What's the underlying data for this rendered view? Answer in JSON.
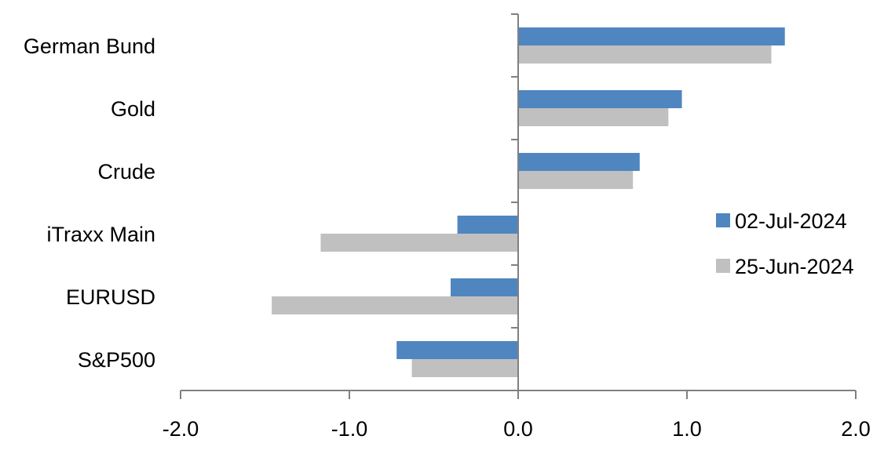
{
  "chart_data": {
    "type": "bar",
    "orientation": "horizontal",
    "categories": [
      "German Bund",
      "Gold",
      "Crude",
      "iTraxx Main",
      "EURUSD",
      "S&P500"
    ],
    "series": [
      {
        "name": "02-Jul-2024",
        "color": "#4f86c0",
        "values": [
          1.58,
          0.97,
          0.72,
          -0.36,
          -0.4,
          -0.72
        ]
      },
      {
        "name": "25-Jun-2024",
        "color": "#c0c0c0",
        "values": [
          1.5,
          0.89,
          0.68,
          -1.17,
          -1.46,
          -0.63
        ]
      }
    ],
    "xlim": [
      -2.0,
      2.0
    ],
    "xticks": [
      "-2.0",
      "-1.0",
      "0.0",
      "1.0",
      "2.0"
    ],
    "grid": false,
    "legend": "right"
  }
}
